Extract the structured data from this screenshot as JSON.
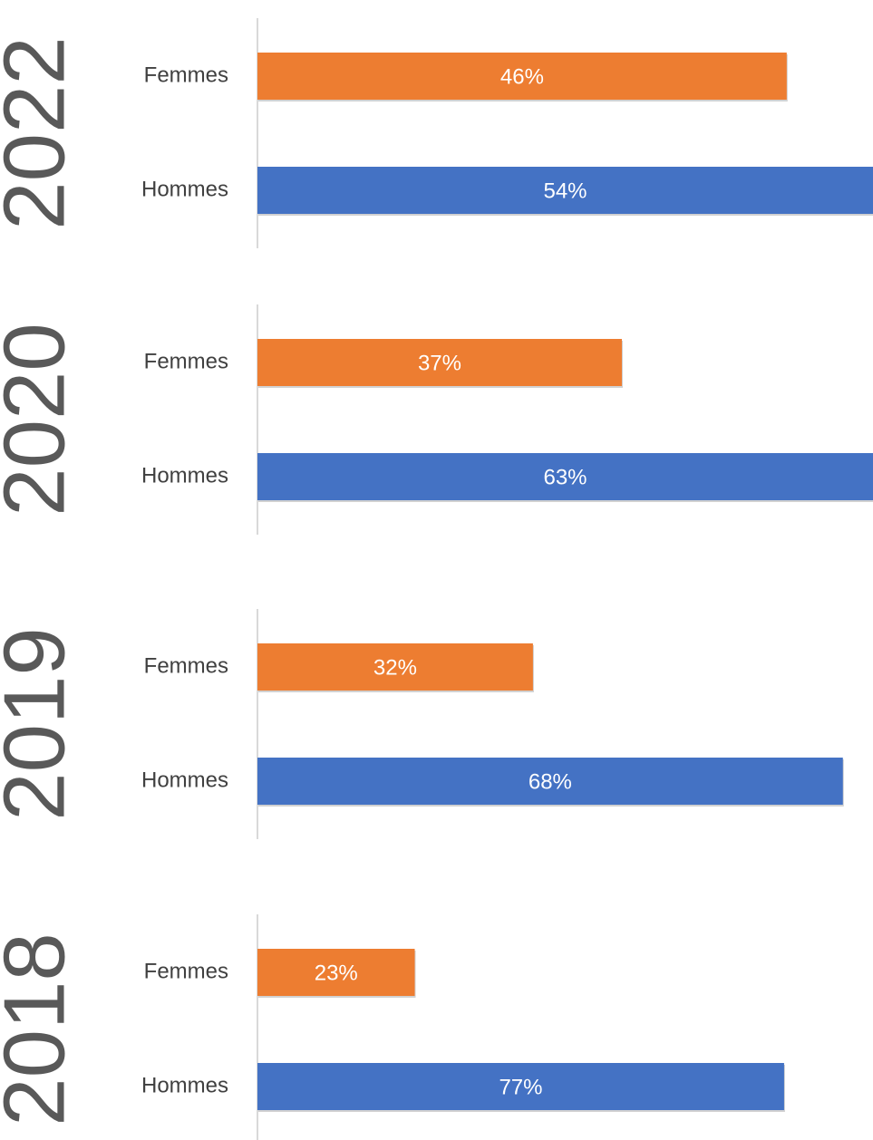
{
  "chart_data": [
    {
      "type": "bar",
      "title": "2022",
      "categories": [
        "Femmes",
        "Hommes"
      ],
      "values": [
        46,
        54
      ],
      "value_labels": [
        "46%",
        "54%"
      ],
      "colors": [
        "#ed7d31",
        "#4472c4"
      ],
      "xlim": [
        0,
        53.5
      ]
    },
    {
      "type": "bar",
      "title": "2020",
      "categories": [
        "Femmes",
        "Hommes"
      ],
      "values": [
        37,
        63
      ],
      "value_labels": [
        "37%",
        "63%"
      ],
      "colors": [
        "#ed7d31",
        "#4472c4"
      ],
      "xlim": [
        0,
        62.5
      ]
    },
    {
      "type": "bar",
      "title": "2019",
      "categories": [
        "Femmes",
        "Hommes"
      ],
      "values": [
        32,
        68
      ],
      "value_labels": [
        "32%",
        "68%"
      ],
      "colors": [
        "#ed7d31",
        "#4472c4"
      ],
      "xlim": [
        0,
        71.5
      ]
    },
    {
      "type": "bar",
      "title": "2018",
      "categories": [
        "Femmes",
        "Hommes"
      ],
      "values": [
        23,
        77
      ],
      "value_labels": [
        "23%",
        "77%"
      ],
      "colors": [
        "#ed7d31",
        "#4472c4"
      ],
      "xlim": [
        0,
        90
      ]
    }
  ]
}
